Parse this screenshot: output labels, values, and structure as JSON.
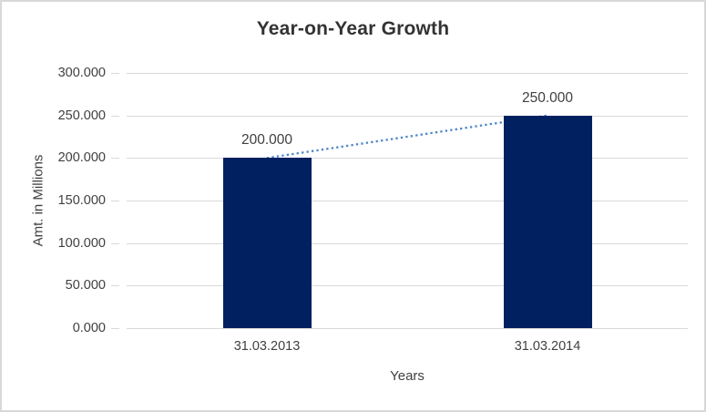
{
  "window": {
    "background": "#ffffff",
    "border_color": "#d8d8d8"
  },
  "chart_data": {
    "type": "bar",
    "title": "Year-on-Year Growth",
    "categories": [
      "31.03.2013",
      "31.03.2014"
    ],
    "values": [
      200,
      250
    ],
    "value_labels": [
      "200.000",
      "250.000"
    ],
    "xlabel": "Years",
    "ylabel": "Amt. in Millions",
    "ylim": [
      0,
      300
    ],
    "ytick_step": 50,
    "yticks": [
      0,
      50,
      100,
      150,
      200,
      250,
      300
    ],
    "ytick_labels": [
      "0.000",
      "50.000",
      "100.000",
      "150.000",
      "200.000",
      "250.000",
      "300.000"
    ],
    "grid": true,
    "legend": "none",
    "trendline": {
      "type": "linear",
      "style": "dotted",
      "color": "#4f86c6"
    },
    "colors": {
      "bar": "#002060",
      "gridline": "#d9d9d9",
      "axis_line": "#d9d9d9",
      "title_text": "#333333",
      "label_text": "#404040",
      "data_label_text": "#404040"
    }
  }
}
